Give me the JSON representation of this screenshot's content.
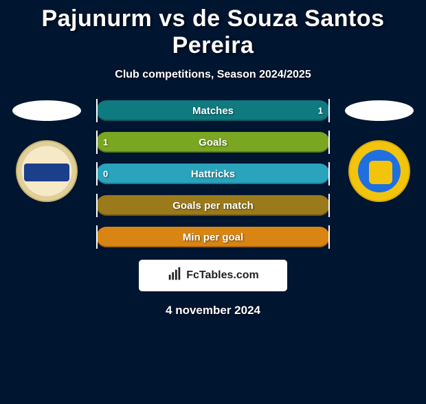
{
  "title": "Pajunurm vs de Souza Santos Pereira",
  "subtitle": "Club competitions, Season 2024/2025",
  "date": "4 november 2024",
  "watermark_text": "FcTables.com",
  "bars": [
    {
      "label": "Matches",
      "color": "teal",
      "left": "",
      "right": "1"
    },
    {
      "label": "Goals",
      "color": "green",
      "left": "1",
      "right": ""
    },
    {
      "label": "Hattricks",
      "color": "cyan",
      "left": "0",
      "right": ""
    },
    {
      "label": "Goals per match",
      "color": "olive",
      "left": "",
      "right": ""
    },
    {
      "label": "Min per goal",
      "color": "orange",
      "left": "",
      "right": ""
    }
  ]
}
